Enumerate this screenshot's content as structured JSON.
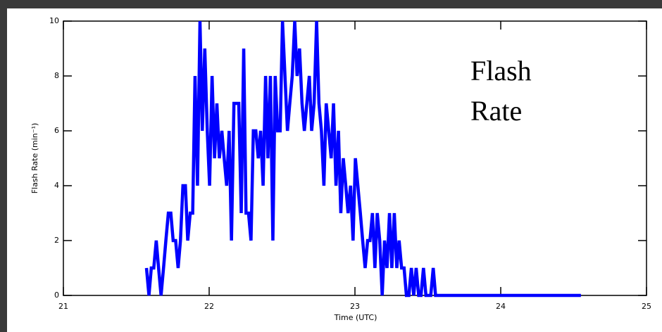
{
  "chart_data": {
    "type": "line",
    "xlabel": "Time (UTC)",
    "ylabel": "Flash Rate (min⁻¹)",
    "annotation": [
      "Flash",
      "Rate"
    ],
    "xlim": [
      21,
      25
    ],
    "xticks": [
      21,
      22,
      23,
      24,
      25
    ],
    "ylim": [
      0,
      10
    ],
    "yticks": [
      0,
      2,
      4,
      6,
      8,
      10
    ],
    "x": [
      21.57,
      21.587,
      21.603,
      21.62,
      21.637,
      21.653,
      21.67,
      21.687,
      21.703,
      21.72,
      21.737,
      21.753,
      21.77,
      21.787,
      21.803,
      21.82,
      21.837,
      21.853,
      21.87,
      21.887,
      21.903,
      21.92,
      21.937,
      21.953,
      21.97,
      21.987,
      22.003,
      22.02,
      22.037,
      22.053,
      22.07,
      22.087,
      22.103,
      22.12,
      22.137,
      22.153,
      22.17,
      22.187,
      22.203,
      22.22,
      22.237,
      22.253,
      22.27,
      22.287,
      22.303,
      22.32,
      22.337,
      22.353,
      22.37,
      22.387,
      22.403,
      22.42,
      22.437,
      22.453,
      22.47,
      22.487,
      22.503,
      22.52,
      22.537,
      22.553,
      22.57,
      22.587,
      22.603,
      22.62,
      22.637,
      22.653,
      22.67,
      22.687,
      22.703,
      22.72,
      22.737,
      22.753,
      22.77,
      22.787,
      22.803,
      22.82,
      22.837,
      22.853,
      22.87,
      22.887,
      22.903,
      22.92,
      22.937,
      22.953,
      22.97,
      22.987,
      23.003,
      23.02,
      23.037,
      23.053,
      23.07,
      23.087,
      23.103,
      23.12,
      23.137,
      23.153,
      23.17,
      23.187,
      23.203,
      23.22,
      23.237,
      23.253,
      23.27,
      23.287,
      23.303,
      23.32,
      23.337,
      23.353,
      23.37,
      23.387,
      23.403,
      23.42,
      23.437,
      23.453,
      23.47,
      23.487,
      23.503,
      23.52,
      23.537,
      23.553,
      23.57,
      23.587,
      23.603,
      23.62,
      23.637,
      23.653,
      24.55
    ],
    "series": [
      {
        "color": "#0000ff",
        "values": [
          1,
          0,
          1,
          1,
          2,
          1,
          0,
          1,
          2,
          3,
          3,
          2,
          2,
          1,
          2,
          4,
          4,
          2,
          3,
          3,
          8,
          4,
          10,
          6,
          9,
          6,
          4,
          8,
          5,
          7,
          5,
          6,
          5,
          4,
          6,
          2,
          7,
          7,
          7,
          3,
          9,
          3,
          3,
          2,
          6,
          6,
          5,
          6,
          4,
          8,
          5,
          8,
          2,
          8,
          6,
          6,
          10,
          8,
          6,
          7,
          8,
          10,
          8,
          9,
          7,
          6,
          7,
          8,
          6,
          7,
          10,
          7,
          6,
          4,
          7,
          6,
          5,
          7,
          4,
          6,
          3,
          5,
          4,
          3,
          4,
          2,
          5,
          4,
          3,
          2,
          1,
          2,
          2,
          3,
          1,
          3,
          2,
          0,
          2,
          1,
          3,
          1,
          3,
          1,
          2,
          1,
          1,
          0,
          0,
          1,
          0,
          1,
          0,
          0,
          1,
          0,
          0,
          0,
          1,
          0,
          0,
          0,
          0,
          0,
          0,
          0,
          0
        ]
      }
    ]
  }
}
